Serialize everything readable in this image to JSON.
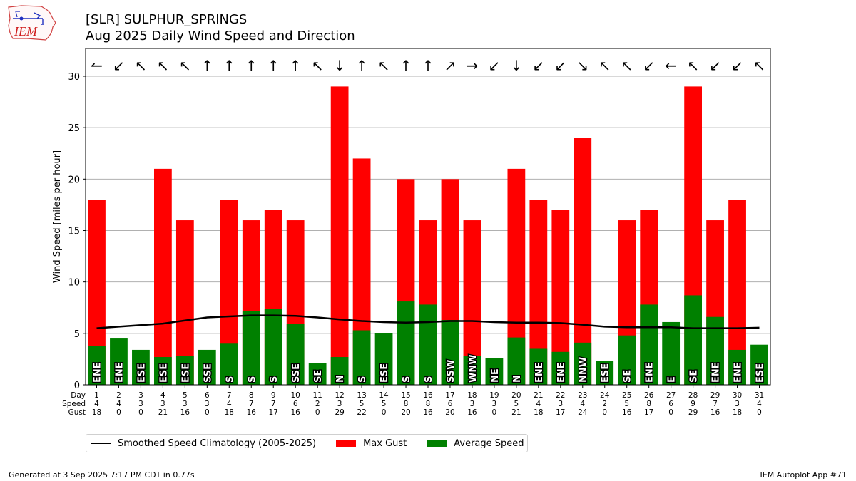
{
  "header": {
    "logo_text": "IEM",
    "title_line1": "[SLR] SULPHUR_SPRINGS",
    "title_line2": "Aug 2025 Daily Wind Speed and Direction"
  },
  "legend": {
    "climo_label": "Smoothed Speed Climatology (2005-2025)",
    "gust_label": "Max Gust",
    "avg_label": "Average Speed"
  },
  "footer": {
    "generated": "Generated at 3 Sep 2025 7:17 PM CDT in 0.77s",
    "app": "IEM Autoplot App #71"
  },
  "colors": {
    "gust": "#ff0000",
    "avg": "#008000",
    "climo": "#000000",
    "grid": "#b0b0b0"
  },
  "chart_data": {
    "type": "bar",
    "ylabel": "Wind Speed [miles per hour]",
    "ylim": [
      0,
      32.7
    ],
    "yticks": [
      0,
      5,
      10,
      15,
      20,
      25,
      30
    ],
    "grid": "horizontal",
    "row_labels": [
      "Day",
      "Speed",
      "Gust"
    ],
    "days": [
      1,
      2,
      3,
      4,
      5,
      6,
      7,
      8,
      9,
      10,
      11,
      12,
      13,
      14,
      15,
      16,
      17,
      18,
      19,
      20,
      21,
      22,
      23,
      24,
      25,
      26,
      27,
      28,
      29,
      30,
      31
    ],
    "speed_labels": [
      4,
      4,
      3,
      3,
      3,
      3,
      4,
      7,
      7,
      6,
      2,
      3,
      5,
      5,
      8,
      8,
      6,
      3,
      3,
      5,
      4,
      3,
      4,
      2,
      5,
      8,
      6,
      9,
      7,
      3,
      4
    ],
    "gust_labels": [
      18,
      0,
      0,
      21,
      16,
      0,
      18,
      16,
      17,
      16,
      0,
      29,
      22,
      0,
      20,
      16,
      20,
      16,
      0,
      21,
      18,
      17,
      24,
      0,
      16,
      17,
      0,
      29,
      16,
      18,
      0
    ],
    "avg_speed": [
      3.8,
      4.5,
      3.4,
      2.7,
      2.8,
      3.4,
      4.0,
      7.2,
      7.4,
      5.9,
      2.1,
      2.7,
      5.3,
      5.0,
      8.1,
      7.8,
      6.3,
      2.8,
      2.6,
      4.6,
      3.5,
      3.2,
      4.1,
      2.3,
      4.8,
      7.8,
      6.1,
      8.7,
      6.6,
      3.4,
      3.9
    ],
    "max_gust": [
      18,
      0,
      0,
      21,
      16,
      0,
      18,
      16,
      17,
      16,
      0,
      29,
      22,
      0,
      20,
      16,
      20,
      16,
      0,
      21,
      18,
      17,
      24,
      0,
      16,
      17,
      0,
      29,
      16,
      18,
      0
    ],
    "direction_text": [
      "ENE",
      "ENE",
      "ESE",
      "ESE",
      "ESE",
      "SSE",
      "S",
      "S",
      "S",
      "SSE",
      "SE",
      "N",
      "S",
      "ESE",
      "S",
      "S",
      "SSW",
      "WNW",
      "NE",
      "N",
      "ENE",
      "ENE",
      "NNW",
      "ESE",
      "SE",
      "ENE",
      "E",
      "SE",
      "ENE",
      "ENE",
      "ESE"
    ],
    "arrows": [
      "↼",
      "↙",
      "↖",
      "↖",
      "↖",
      "↑",
      "↑",
      "↑",
      "↑",
      "↑",
      "↖",
      "↓",
      "↑",
      "↖",
      "↑",
      "↑",
      "↗",
      "→",
      "↙",
      "↓",
      "↙",
      "↙",
      "↘",
      "↖",
      "↖",
      "↙",
      "←",
      "↖",
      "↙",
      "↙",
      "↖"
    ],
    "climatology": [
      5.5,
      5.65,
      5.8,
      5.95,
      6.25,
      6.55,
      6.65,
      6.75,
      6.75,
      6.7,
      6.55,
      6.35,
      6.2,
      6.1,
      6.05,
      6.1,
      6.2,
      6.2,
      6.1,
      6.05,
      6.05,
      6.0,
      5.85,
      5.65,
      5.6,
      5.6,
      5.6,
      5.5,
      5.5,
      5.5,
      5.55
    ],
    "series": [
      {
        "name": "Max Gust"
      },
      {
        "name": "Average Speed"
      },
      {
        "name": "Smoothed Speed Climatology (2005-2025)"
      }
    ]
  }
}
